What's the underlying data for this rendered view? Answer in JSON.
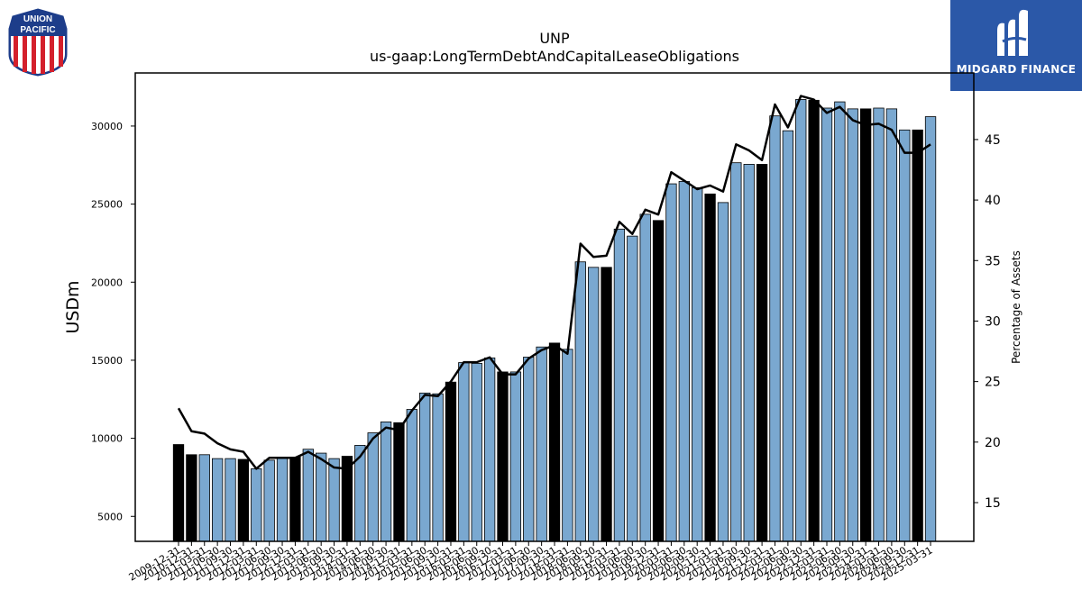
{
  "logos": {
    "left_text_1": "UNION",
    "left_text_2": "PACIFIC",
    "right_brand": "MIDGARD FINANCE"
  },
  "colors": {
    "bar_q": "#7aa8d0",
    "bar_fy": "#000000",
    "line": "#000000",
    "brand_bg": "#2b58a8"
  },
  "chart_data": {
    "type": "bar",
    "title": "UNP",
    "subtitle": "us-gaap:LongTermDebtAndCapitalLeaseObligations",
    "ylabel": "USDm",
    "y2label": "Percentage of Assets",
    "ylim": [
      3400,
      33400
    ],
    "y2lim": [
      11.8,
      50.5
    ],
    "yticks": [
      5000,
      10000,
      15000,
      20000,
      25000,
      30000
    ],
    "y2ticks": [
      15,
      20,
      25,
      30,
      35,
      40,
      45
    ],
    "categories": [
      "2009-12-31",
      "2010-12-31",
      "2011-03-31",
      "2011-06-30",
      "2011-09-30",
      "2011-12-31",
      "2012-03-31",
      "2012-06-30",
      "2012-09-30",
      "2012-12-31",
      "2013-03-31",
      "2013-06-30",
      "2013-09-30",
      "2013-12-31",
      "2014-03-31",
      "2014-06-30",
      "2014-09-30",
      "2014-12-31",
      "2015-03-31",
      "2015-06-30",
      "2015-09-30",
      "2015-12-31",
      "2016-03-31",
      "2016-06-30",
      "2016-09-30",
      "2016-12-31",
      "2017-03-31",
      "2017-06-30",
      "2017-09-30",
      "2017-12-31",
      "2018-03-31",
      "2018-06-30",
      "2018-09-30",
      "2018-12-31",
      "2019-03-31",
      "2019-06-30",
      "2019-09-30",
      "2019-12-31",
      "2020-03-31",
      "2020-06-30",
      "2020-09-30",
      "2020-12-31",
      "2021-03-31",
      "2021-06-30",
      "2021-09-30",
      "2021-12-31",
      "2022-03-31",
      "2022-06-30",
      "2022-09-30",
      "2022-12-31",
      "2023-03-31",
      "2023-06-30",
      "2023-09-30",
      "2023-12-31",
      "2024-03-31",
      "2024-06-30",
      "2024-09-30",
      "2024-12-31",
      "2025-03-31"
    ],
    "fiscal_year_end": [
      true,
      true,
      false,
      false,
      false,
      true,
      false,
      false,
      false,
      true,
      false,
      false,
      false,
      true,
      false,
      false,
      false,
      true,
      false,
      false,
      false,
      true,
      false,
      false,
      false,
      true,
      false,
      false,
      false,
      true,
      false,
      false,
      false,
      true,
      false,
      false,
      false,
      true,
      false,
      false,
      false,
      true,
      false,
      false,
      false,
      true,
      false,
      false,
      false,
      true,
      false,
      false,
      false,
      true,
      false,
      false,
      false,
      true,
      false
    ],
    "series": [
      {
        "values": [
          9600,
          8950,
          8950,
          8700,
          8700,
          8650,
          8050,
          8600,
          8750,
          8800,
          9300,
          9050,
          8700,
          8850,
          9550,
          10350,
          11050,
          11000,
          11850,
          12900,
          12850,
          13600,
          14850,
          14800,
          15150,
          14250,
          14250,
          15200,
          15850,
          16100,
          15700,
          21300,
          20950,
          20950,
          23400,
          22950,
          24350,
          23950,
          26300,
          26450,
          26050,
          25650,
          25100,
          27650,
          27550,
          27550,
          30650,
          29700,
          31700,
          31650,
          31150,
          31550,
          31100,
          31100,
          31150,
          31100,
          29750,
          29750,
          30600
        ],
        "kind": "bar"
      },
      {
        "name": "Percentage of Assets",
        "values": [
          22.8,
          20.9,
          20.7,
          19.9,
          19.4,
          19.2,
          17.8,
          18.7,
          18.7,
          18.7,
          19.2,
          18.6,
          17.9,
          17.8,
          18.8,
          20.3,
          21.2,
          21.0,
          22.6,
          23.9,
          23.8,
          25.0,
          26.6,
          26.6,
          27.0,
          25.6,
          25.6,
          26.9,
          27.6,
          28.0,
          27.3,
          36.4,
          35.3,
          35.4,
          38.2,
          37.2,
          39.2,
          38.8,
          42.3,
          41.6,
          40.9,
          41.2,
          40.7,
          44.6,
          44.1,
          43.3,
          47.9,
          46.0,
          48.6,
          48.3,
          47.2,
          47.7,
          46.6,
          46.2,
          46.3,
          45.8,
          43.9,
          43.9,
          44.6
        ],
        "kind": "line"
      }
    ]
  }
}
